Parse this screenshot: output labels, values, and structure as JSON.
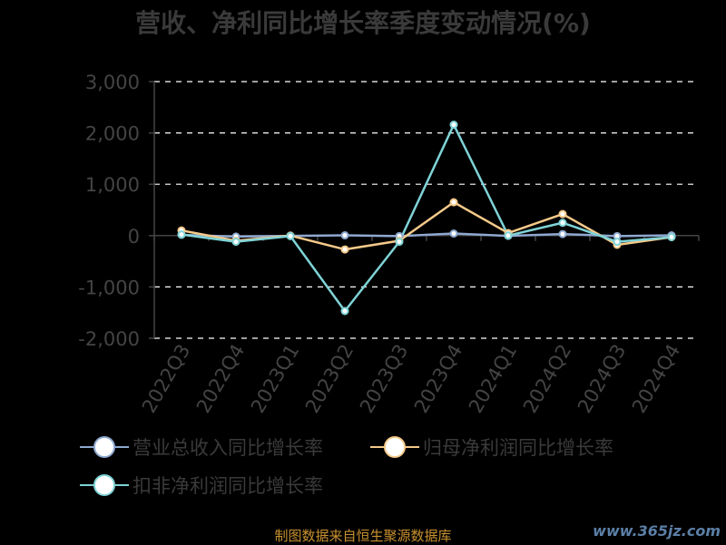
{
  "title": "营收、净利同比增长率季度变动情况(%)",
  "footer": {
    "source": "制图数据来自恒生聚源数据库",
    "watermark": "www.365jz.com"
  },
  "colors": {
    "background": "#000000",
    "grid": "#ffffff",
    "axis_text": "#444444",
    "revenue": "#8fa8d0",
    "net_profit": "#f5c98a",
    "deducted_net_profit": "#7fd3d6"
  },
  "chart_data": {
    "type": "line",
    "categories": [
      "2022Q3",
      "2022Q4",
      "2023Q1",
      "2023Q2",
      "2023Q3",
      "2023Q4",
      "2024Q1",
      "2024Q2",
      "2024Q3",
      "2024Q4"
    ],
    "ylim": [
      -2000,
      3000
    ],
    "yticks": [
      -2000,
      -1000,
      0,
      1000,
      2000,
      3000
    ],
    "ytick_labels": [
      "-2,000",
      "-1,000",
      "0",
      "1,000",
      "2,000",
      "3,000"
    ],
    "grid": true,
    "legend_position": "bottom",
    "series": [
      {
        "name": "营业总收入同比增长率",
        "values": [
          15,
          -20,
          -5,
          5,
          -10,
          40,
          -5,
          30,
          -10,
          5
        ],
        "color": "#8fa8d0"
      },
      {
        "name": "归母净利润同比增长率",
        "values": [
          100,
          -100,
          0,
          -270,
          -100,
          650,
          50,
          420,
          -180,
          -30
        ],
        "color": "#f5c98a"
      },
      {
        "name": "扣非净利润同比增长率",
        "values": [
          20,
          -120,
          -10,
          -1470,
          -120,
          2160,
          0,
          250,
          -120,
          -30
        ],
        "color": "#7fd3d6"
      }
    ]
  }
}
